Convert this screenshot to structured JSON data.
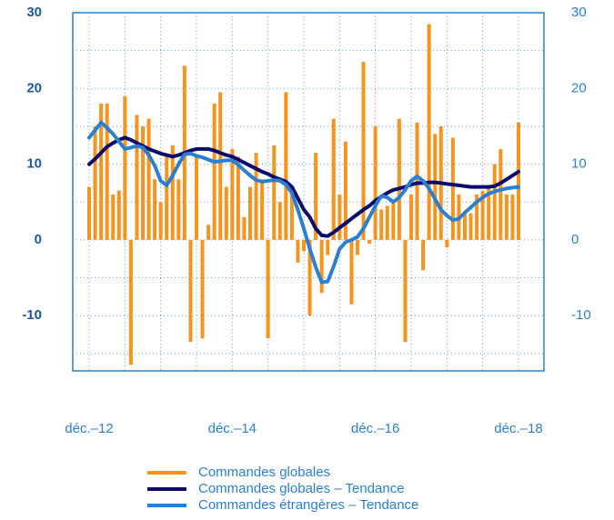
{
  "chart_data": {
    "type": "combo",
    "categories": [
      "déc.–12",
      null,
      null,
      null,
      null,
      null,
      null,
      null,
      null,
      null,
      null,
      null,
      null,
      null,
      null,
      null,
      null,
      null,
      null,
      null,
      null,
      null,
      null,
      null,
      "déc.–14",
      null,
      null,
      null,
      null,
      null,
      null,
      null,
      null,
      null,
      null,
      null,
      null,
      null,
      null,
      null,
      null,
      null,
      null,
      null,
      null,
      null,
      null,
      null,
      "déc.–16",
      null,
      null,
      null,
      null,
      null,
      null,
      null,
      null,
      null,
      null,
      null,
      null,
      null,
      null,
      null,
      null,
      null,
      null,
      null,
      null,
      null,
      null,
      null,
      "déc.–18"
    ],
    "series": [
      {
        "name": "Commandes globales",
        "type": "bar",
        "color": "#f7941d",
        "values": [
          7,
          15,
          18,
          18,
          6,
          6.5,
          19,
          -16.5,
          16.5,
          15,
          16,
          8,
          5,
          11,
          12.5,
          8,
          23,
          -13.5,
          11,
          -13,
          2,
          18,
          19.5,
          7,
          12,
          11,
          3,
          7,
          11.5,
          8,
          -13,
          12.5,
          5,
          19.5,
          7,
          -3,
          -1.5,
          -10,
          11.5,
          -7,
          -2,
          16,
          6,
          13,
          -8.5,
          -2,
          23.5,
          -0.5,
          15,
          4,
          4.5,
          5,
          16,
          -13.5,
          6,
          15.5,
          -4,
          28.5,
          14,
          15,
          -1,
          13.5,
          6,
          3.5,
          3.5,
          6,
          6.5,
          7,
          10,
          12,
          6,
          6,
          15.5
        ]
      },
      {
        "name": "Commandes globales – Tendance",
        "type": "line",
        "color": "#0b0b6e",
        "values": [
          10,
          10.7,
          11.5,
          12.3,
          12.8,
          13.2,
          13.5,
          13.2,
          12.8,
          12.4,
          12,
          11.7,
          11.4,
          11.2,
          11,
          11.2,
          11.5,
          11.8,
          12,
          12,
          12,
          11.8,
          11.5,
          11.2,
          11,
          10.6,
          10.2,
          9.8,
          9.4,
          9,
          8.7,
          8.3,
          8,
          7.7,
          7,
          5.5,
          4,
          3,
          1.5,
          0.6,
          0.5,
          1,
          1.6,
          2.2,
          2.8,
          3.4,
          4,
          4.5,
          5.2,
          5.7,
          6.2,
          6.6,
          6.8,
          7,
          7.3,
          7.5,
          7.5,
          7.6,
          7.6,
          7.5,
          7.4,
          7.3,
          7.2,
          7.1,
          7,
          7,
          7,
          7,
          7.1,
          7.5,
          8,
          8.5,
          9
        ]
      },
      {
        "name": "Commandes étrangères – Tendance",
        "type": "line",
        "color": "#2b7fd3",
        "values": [
          13.5,
          14.5,
          15.5,
          14.8,
          14,
          13,
          12,
          12.2,
          12.4,
          12.2,
          11.2,
          9.8,
          7.8,
          7.2,
          8.5,
          10,
          11.3,
          11.4,
          11.1,
          10.9,
          10.6,
          10.3,
          10.4,
          10.5,
          10.5,
          9.9,
          9.2,
          8.5,
          7.9,
          7.7,
          7.8,
          7.9,
          7.8,
          7.3,
          6.2,
          4,
          1.5,
          -1.2,
          -3.6,
          -5.6,
          -5.5,
          -3.5,
          -1.2,
          -0.3,
          0,
          0.4,
          1.5,
          3,
          4.5,
          5.8,
          5.6,
          5,
          5.6,
          6.6,
          7.8,
          8.4,
          7.8,
          6.8,
          5.4,
          4,
          3.2,
          2.6,
          2.8,
          3.6,
          4.3,
          5,
          5.6,
          6.1,
          6.4,
          6.6,
          6.8,
          6.9,
          7
        ]
      }
    ],
    "ylim": [
      -17.3,
      30
    ],
    "yticks": [
      -10,
      0,
      10,
      20,
      30
    ],
    "y2lim": [
      -17.3,
      30
    ],
    "y2ticks": [
      -10,
      0,
      10,
      20,
      30
    ],
    "ygrid": [
      -15,
      -10,
      -5,
      0,
      5,
      10,
      15,
      20,
      25
    ],
    "xgrid_every": 6,
    "grid": true
  }
}
